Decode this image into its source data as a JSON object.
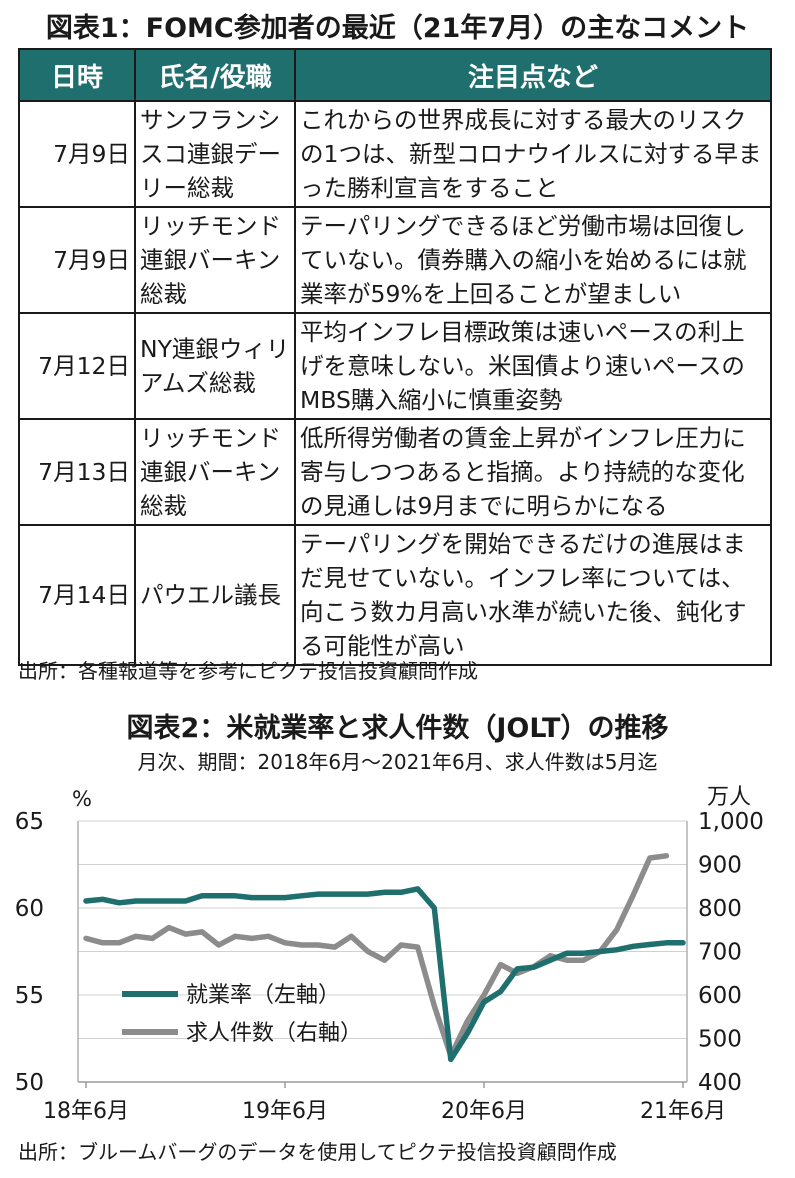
{
  "table1": {
    "title": "図表1：FOMC参加者の最近（21年7月）の主なコメント",
    "headers": [
      "日時",
      "氏名/役職",
      "注目点など"
    ],
    "rows": [
      {
        "date": "7月9日",
        "name": "サンフランシスコ連銀デーリー総裁",
        "comment": "これからの世界成長に対する最大のリスクの1つは、新型コロナウイルスに対する早まった勝利宣言をすること"
      },
      {
        "date": "7月9日",
        "name": "リッチモンド連銀バーキン総裁",
        "comment": "テーパリングできるほど労働市場は回復していない。債券購入の縮小を始めるには就業率が59%を上回ることが望ましい"
      },
      {
        "date": "7月12日",
        "name": "NY連銀ウィリアムズ総裁",
        "comment": "平均インフレ目標政策は速いペースの利上げを意味しない。米国債より速いペースのMBS購入縮小に慎重姿勢"
      },
      {
        "date": "7月13日",
        "name": "リッチモンド連銀バーキン総裁",
        "comment": "低所得労働者の賃金上昇がインフレ圧力に寄与しつつあると指摘。より持続的な変化の見通しは9月までに明らかになる"
      },
      {
        "date": "7月14日",
        "name": "パウエル議長",
        "comment": "テーパリングを開始できるだけの進展はまだ見せていない。インフレ率については、向こう数カ月高い水準が続いた後、鈍化する可能性が高い"
      }
    ],
    "source": "出所：各種報道等を参考にピクテ投信投資顧問作成"
  },
  "chart_data": {
    "type": "line",
    "title": "図表2：米就業率と求人件数（JOLT）の推移",
    "subtitle": "月次、期間：2018年6月～2021年6月、求人件数は5月迄",
    "left_unit": "%",
    "right_unit": "万人",
    "x": [
      "2018-06",
      "2018-07",
      "2018-08",
      "2018-09",
      "2018-10",
      "2018-11",
      "2018-12",
      "2019-01",
      "2019-02",
      "2019-03",
      "2019-04",
      "2019-05",
      "2019-06",
      "2019-07",
      "2019-08",
      "2019-09",
      "2019-10",
      "2019-11",
      "2019-12",
      "2020-01",
      "2020-02",
      "2020-03",
      "2020-04",
      "2020-05",
      "2020-06",
      "2020-07",
      "2020-08",
      "2020-09",
      "2020-10",
      "2020-11",
      "2020-12",
      "2021-01",
      "2021-02",
      "2021-03",
      "2021-04",
      "2021-05",
      "2021-06"
    ],
    "x_tick_labels": [
      "18年6月",
      "19年6月",
      "20年6月",
      "21年6月"
    ],
    "y_left": {
      "range": [
        50,
        65
      ],
      "ticks": [
        "50",
        "55",
        "60",
        "65"
      ]
    },
    "y_right": {
      "range": [
        400,
        1000
      ],
      "ticks": [
        "400",
        "500",
        "600",
        "700",
        "800",
        "900",
        "1,000"
      ]
    },
    "series": [
      {
        "name": "就業率（左軸）",
        "axis": "left",
        "color": "#1f6f6f",
        "values": [
          60.4,
          60.5,
          60.3,
          60.4,
          60.4,
          60.4,
          60.4,
          60.7,
          60.7,
          60.7,
          60.6,
          60.6,
          60.6,
          60.7,
          60.8,
          60.8,
          60.8,
          60.8,
          60.9,
          60.9,
          61.1,
          60.0,
          51.3,
          52.8,
          54.6,
          55.2,
          56.5,
          56.6,
          57.0,
          57.4,
          57.4,
          57.5,
          57.6,
          57.8,
          57.9,
          58.0,
          58.0
        ]
      },
      {
        "name": "求人件数（右軸）",
        "axis": "right",
        "color": "#8c8c8c",
        "values": [
          730,
          720,
          720,
          735,
          730,
          755,
          740,
          745,
          715,
          735,
          730,
          735,
          720,
          715,
          715,
          710,
          735,
          700,
          680,
          715,
          710,
          575,
          460,
          540,
          600,
          670,
          650,
          665,
          690,
          680,
          680,
          700,
          750,
          830,
          915,
          920,
          null
        ]
      }
    ],
    "legend_position": "left-center",
    "grid": "horizontal"
  },
  "source2": "出所：ブルームバーグのデータを使用してピクテ投信投資顧問作成"
}
